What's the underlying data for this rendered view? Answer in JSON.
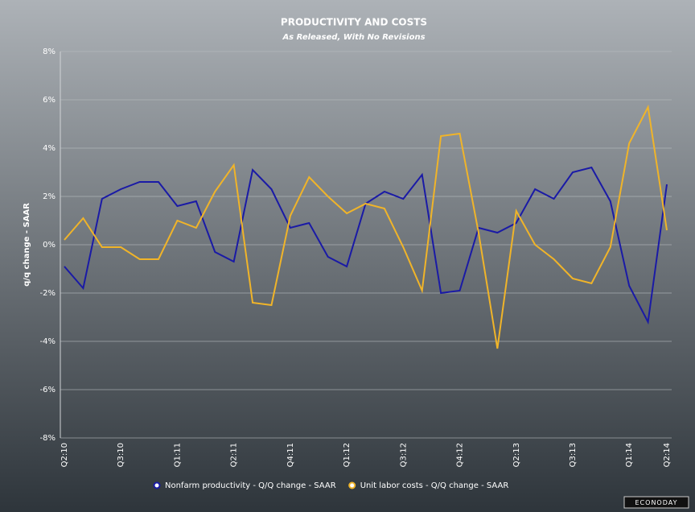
{
  "chart_data": {
    "type": "line",
    "title": "PRODUCTIVITY AND COSTS",
    "subtitle": "As Released, With No Revisions",
    "y_label": "q/q change - SAAR",
    "categories": [
      "Q2:10",
      null,
      null,
      "Q3:10",
      null,
      null,
      "Q1:11",
      null,
      null,
      "Q2:11",
      null,
      null,
      "Q4:11",
      null,
      null,
      "Q1:12",
      null,
      null,
      "Q3:12",
      null,
      null,
      "Q4:12",
      null,
      null,
      "Q2:13",
      null,
      null,
      "Q3:13",
      null,
      null,
      "Q1:14",
      null,
      "Q2:14"
    ],
    "series": [
      {
        "name": "Nonfarm productivity - Q/Q change - SAAR",
        "color": "#1a1aa6",
        "values": [
          -0.9,
          -1.8,
          1.9,
          2.3,
          2.6,
          2.6,
          1.6,
          1.8,
          -0.3,
          -0.7,
          3.1,
          2.3,
          0.7,
          0.9,
          -0.5,
          -0.9,
          1.7,
          2.2,
          1.9,
          2.9,
          -2.0,
          -1.9,
          0.7,
          0.5,
          0.9,
          2.3,
          1.9,
          3.0,
          3.2,
          1.8,
          -1.7,
          -3.2,
          2.5
        ]
      },
      {
        "name": "Unit labor costs - Q/Q change - SAAR",
        "color": "#f0b429",
        "values": [
          0.2,
          1.1,
          -0.1,
          -0.1,
          -0.6,
          -0.6,
          1.0,
          0.7,
          2.2,
          3.3,
          -2.4,
          -2.5,
          1.2,
          2.8,
          2.0,
          1.3,
          1.7,
          1.5,
          -0.1,
          -1.9,
          4.5,
          4.6,
          0.5,
          -4.3,
          1.4,
          0.0,
          -0.6,
          -1.4,
          -1.6,
          -0.1,
          4.2,
          5.7,
          0.6
        ]
      }
    ],
    "ylim": [
      -8,
      8
    ],
    "yticks": [
      {
        "value": -8,
        "label": "-8%"
      },
      {
        "value": -6,
        "label": "-6%"
      },
      {
        "value": -4,
        "label": "-4%"
      },
      {
        "value": -2,
        "label": "-2%"
      },
      {
        "value": 0,
        "label": "0%"
      },
      {
        "value": 2,
        "label": "2%"
      },
      {
        "value": 4,
        "label": "4%"
      },
      {
        "value": 6,
        "label": "6%"
      },
      {
        "value": 8,
        "label": "8%"
      }
    ],
    "grid": true,
    "legend": "bottom"
  },
  "brand": "ECONODAY"
}
